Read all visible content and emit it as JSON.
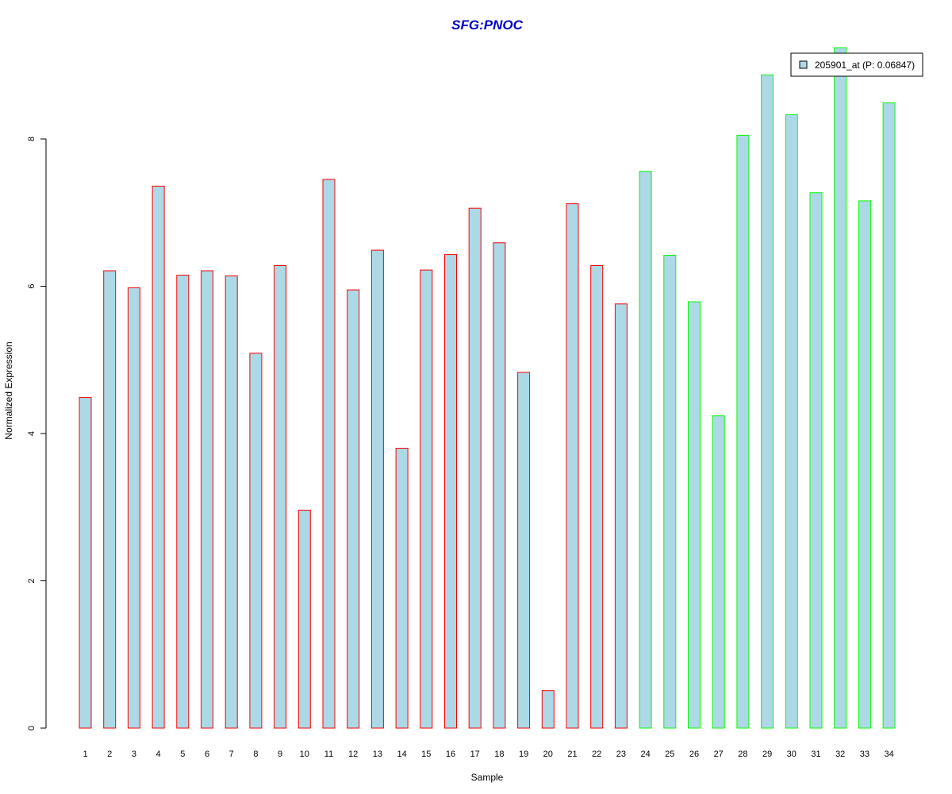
{
  "chart_data": {
    "type": "bar",
    "title": "SFG:PNOC",
    "xlabel": "Sample",
    "ylabel": "Normalized Expression",
    "categories": [
      "1",
      "2",
      "3",
      "4",
      "5",
      "6",
      "7",
      "8",
      "9",
      "10",
      "11",
      "12",
      "13",
      "14",
      "15",
      "16",
      "17",
      "18",
      "19",
      "20",
      "21",
      "22",
      "23",
      "24",
      "25",
      "26",
      "27",
      "28",
      "29",
      "30",
      "31",
      "32",
      "33",
      "34"
    ],
    "values": [
      4.49,
      6.21,
      5.98,
      7.36,
      6.15,
      6.21,
      6.14,
      5.09,
      6.28,
      2.96,
      7.45,
      5.95,
      6.49,
      3.8,
      6.22,
      6.43,
      7.06,
      6.59,
      4.83,
      0.51,
      7.12,
      6.28,
      5.76,
      7.56,
      6.42,
      5.79,
      4.24,
      8.05,
      8.87,
      8.33,
      7.27,
      9.24,
      7.16,
      8.49
    ],
    "groups": [
      "red",
      "red",
      "red",
      "red",
      "red",
      "red",
      "red",
      "red",
      "red",
      "red",
      "red",
      "red",
      "red",
      "red",
      "red",
      "red",
      "red",
      "red",
      "red",
      "red",
      "red",
      "red",
      "red",
      "green",
      "green",
      "green",
      "green",
      "green",
      "green",
      "green",
      "green",
      "green",
      "green",
      "green"
    ],
    "yticks": [
      0,
      2,
      4,
      6,
      8
    ],
    "ylim": [
      0,
      9.3
    ],
    "legend": {
      "label": "205901_at (P: 0.06847)",
      "position": "top-right"
    },
    "colors": {
      "fill": "#add8e6",
      "group_red": "#ff0000",
      "group_green": "#00ff00",
      "title": "#0000cc"
    },
    "grid": false
  }
}
